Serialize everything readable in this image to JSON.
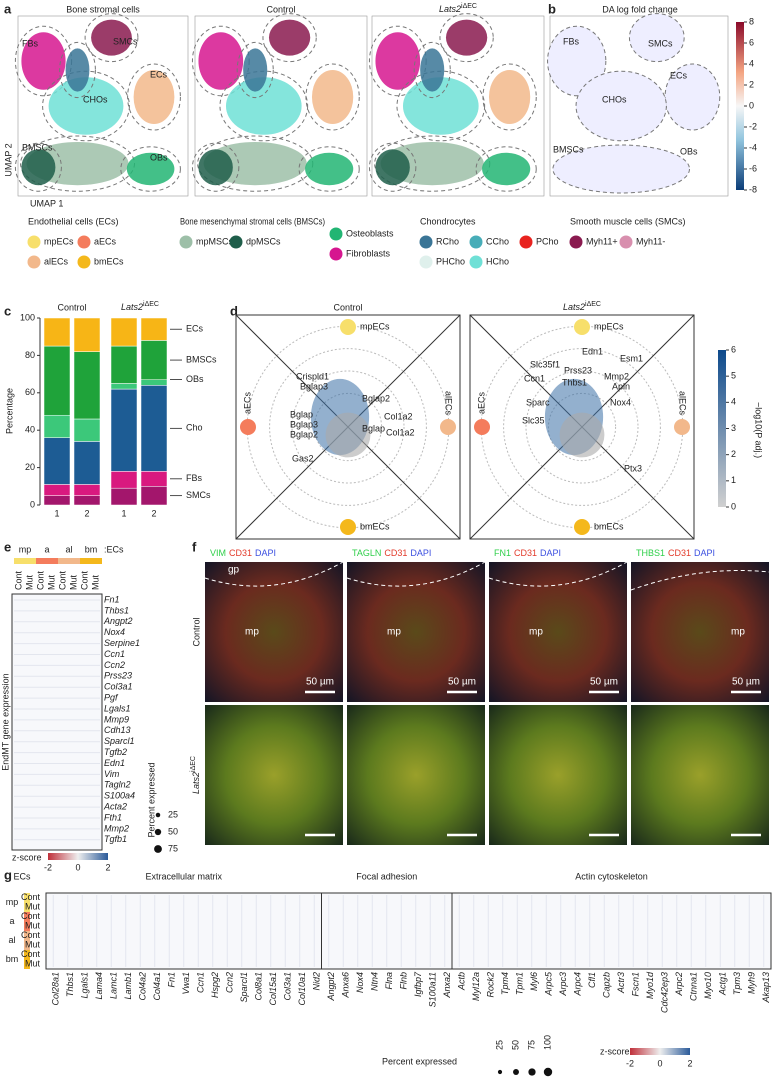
{
  "panel_labels": [
    "a",
    "b",
    "c",
    "d",
    "e",
    "f",
    "g"
  ],
  "panel_a": {
    "titles": [
      "Bone stromal cells",
      "Control",
      "Lats2"
    ],
    "title_sup": "iΔEC",
    "cluster_labels": [
      "FBs",
      "SMCs",
      "ECs",
      "CHOs",
      "BMSCs",
      "OBs"
    ],
    "xlabel": "UMAP 1",
    "ylabel": "UMAP 2"
  },
  "panel_b": {
    "title": "DA log fold change",
    "cluster_labels": [
      "FBs",
      "SMCs",
      "ECs",
      "CHOs",
      "BMSCs",
      "OBs"
    ],
    "colorbar_ticks": [
      8,
      6,
      4,
      2,
      0,
      -2,
      -4,
      -6,
      -8
    ]
  },
  "legend": {
    "groups": [
      {
        "title": "Endothelial cells (ECs)",
        "entries": [
          {
            "label": "mpECs",
            "color": "#f7df6b"
          },
          {
            "label": "aECs",
            "color": "#f47c5c"
          },
          {
            "label": "alECs",
            "color": "#f2b88b"
          },
          {
            "label": "bmECs",
            "color": "#f4b81c"
          }
        ]
      },
      {
        "title": "Bone mesenchymal stromal cells (BMSCs)",
        "entries": [
          {
            "label": "mpMSCs",
            "color": "#9dbfa8"
          },
          {
            "label": "dpMSCs",
            "color": "#1f5e4a"
          }
        ]
      },
      {
        "title": "",
        "entries": [
          {
            "label": "Osteoblasts",
            "color": "#22b573"
          },
          {
            "label": "Fibroblasts",
            "color": "#d6168f"
          }
        ]
      },
      {
        "title": "Chondrocytes",
        "entries": [
          {
            "label": "RCho",
            "color": "#3a7596"
          },
          {
            "label": "CCho",
            "color": "#47adb8"
          },
          {
            "label": "PCho",
            "color": "#e8231f"
          },
          {
            "label": "PHCho",
            "color": "#dff0ec"
          },
          {
            "label": "HCho",
            "color": "#6fe0d6"
          }
        ]
      },
      {
        "title": "Smooth muscle cells (SMCs)",
        "entries": [
          {
            "label": "Myh11+",
            "color": "#8a1a4f"
          },
          {
            "label": "Myh11-",
            "color": "#d88fae"
          }
        ]
      }
    ]
  },
  "chart_data": {
    "type": "stacked_bar",
    "ylabel": "Percentage",
    "groups": [
      "Control",
      "Lats2"
    ],
    "group_sup": "iΔEC",
    "categories": [
      "1",
      "2",
      "1",
      "2"
    ],
    "series": [
      {
        "name": "SMCs",
        "color": "#a3166c",
        "values": [
          5,
          5,
          9,
          10
        ]
      },
      {
        "name": "FBs",
        "color": "#d9197f",
        "values": [
          6,
          6,
          9,
          8
        ]
      },
      {
        "name": "Cho",
        "color": "#1d5c94",
        "values": [
          25,
          23,
          44,
          46
        ]
      },
      {
        "name": "OBs",
        "color": "#3cc87a",
        "values": [
          12,
          12,
          3,
          3
        ]
      },
      {
        "name": "BMSCs",
        "color": "#1fa33a",
        "values": [
          37,
          36,
          20,
          21
        ]
      },
      {
        "name": "ECs",
        "color": "#f7b516",
        "values": [
          15,
          18,
          15,
          12
        ]
      }
    ],
    "ylim": [
      0,
      100
    ],
    "yticks": [
      0,
      20,
      40,
      60,
      80,
      100
    ]
  },
  "panel_d": {
    "titles": [
      "Control",
      "Lats2"
    ],
    "title_sup": "iΔEC",
    "corners": [
      "mpECs",
      "aECs",
      "alECs",
      "bmECs"
    ],
    "genes_control": [
      "Crispld1",
      "Bglap3",
      "Bglap2",
      "Col1a2",
      "Bglap",
      "Bglap3",
      "Bglap2",
      "Col1a2",
      "Gas2",
      "Bglap"
    ],
    "genes_mut": [
      "Edn1",
      "Esm1",
      "Slc35f1",
      "Prss23",
      "Ccn1",
      "Thbs1",
      "Mmp2",
      "Apln",
      "Sparc",
      "Nox4",
      "Slc35",
      "Ptx3"
    ],
    "colorbar_label": "−log10(P adj.)",
    "colorbar_ticks": [
      0,
      1,
      2,
      3,
      4,
      5,
      6
    ]
  },
  "panel_e": {
    "header": [
      "mp",
      "a",
      "al",
      "bm"
    ],
    "header_suffix": ":ECs",
    "columns": [
      "Cont",
      "Mut",
      "Cont",
      "Mut",
      "Cont",
      "Mut",
      "Cont",
      "Mut"
    ],
    "ylabel": "EndMT gene expression",
    "genes": [
      "Fn1",
      "Thbs1",
      "Angpt2",
      "Nox4",
      "Serpine1",
      "Ccn1",
      "Ccn2",
      "Prss23",
      "Col3a1",
      "Pgf",
      "Lgals1",
      "Mmp9",
      "Cdh13",
      "Sparcl1",
      "Tgfb2",
      "Edn1",
      "Vim",
      "Tagln2",
      "S100a4",
      "Acta2",
      "Fth1",
      "Mmp2",
      "Tgfb1"
    ],
    "size_title": "Percent expressed",
    "size_ticks": [
      25,
      50,
      75
    ],
    "zscore_title": "z-score",
    "zscore_ticks": [
      -2,
      0,
      2
    ]
  },
  "panel_f": {
    "columns": [
      [
        "VIM",
        "CD31",
        "DAPI"
      ],
      [
        "TAGLN",
        "CD31",
        "DAPI"
      ],
      [
        "FN1",
        "CD31",
        "DAPI"
      ],
      [
        "THBS1",
        "CD31",
        "DAPI"
      ]
    ],
    "rows": [
      "Control",
      "Lats2"
    ],
    "row_sup": "iΔEC",
    "annotations": {
      "gp": "gp",
      "mp": "mp",
      "scale": "50 µm"
    }
  },
  "panel_g": {
    "group": "ECs",
    "row_groups": [
      "mp",
      "a",
      "al",
      "bm"
    ],
    "rows": [
      "Cont",
      "Mut",
      "Cont",
      "Mut",
      "Cont",
      "Mut",
      "Cont",
      "Mut"
    ],
    "sections": [
      {
        "title": "Extracellular matrix",
        "genes": [
          "Col28a1",
          "Thbs1",
          "Lgals1",
          "Lama4",
          "Lamc1",
          "Lamb1",
          "Col4a2",
          "Col4a1",
          "Fn1",
          "Vwa1",
          "Ccn1",
          "Hspg2",
          "Ccn2",
          "Sparcl1",
          "Col8a1",
          "Col15a1",
          "Col3a1",
          "Col10a1",
          "Nid2"
        ]
      },
      {
        "title": "Focal adhesion",
        "genes": [
          "Angpt2",
          "Anxa6",
          "Nox4",
          "Ntn4",
          "Flna",
          "Flnb",
          "Igfbp7",
          "S100a11",
          "Anxa2"
        ]
      },
      {
        "title": "Actin cytoskeleton",
        "genes": [
          "Actb",
          "Myl12a",
          "Rock2",
          "Tpm4",
          "Tpm1",
          "Myl6",
          "Arpc5",
          "Arpc3",
          "Arpc4",
          "Cfl1",
          "Capzb",
          "Actr3",
          "Fscn1",
          "Myo1d",
          "Cdc42ep3",
          "Arpc2",
          "Ctnna1",
          "Myo10",
          "Actg1",
          "Tpm3",
          "Myh9",
          "Akap13"
        ]
      }
    ],
    "size_title": "Percent expressed",
    "size_ticks": [
      25,
      50,
      75,
      100
    ],
    "zscore_title": "z-score",
    "zscore_ticks": [
      -2,
      0,
      2
    ]
  }
}
